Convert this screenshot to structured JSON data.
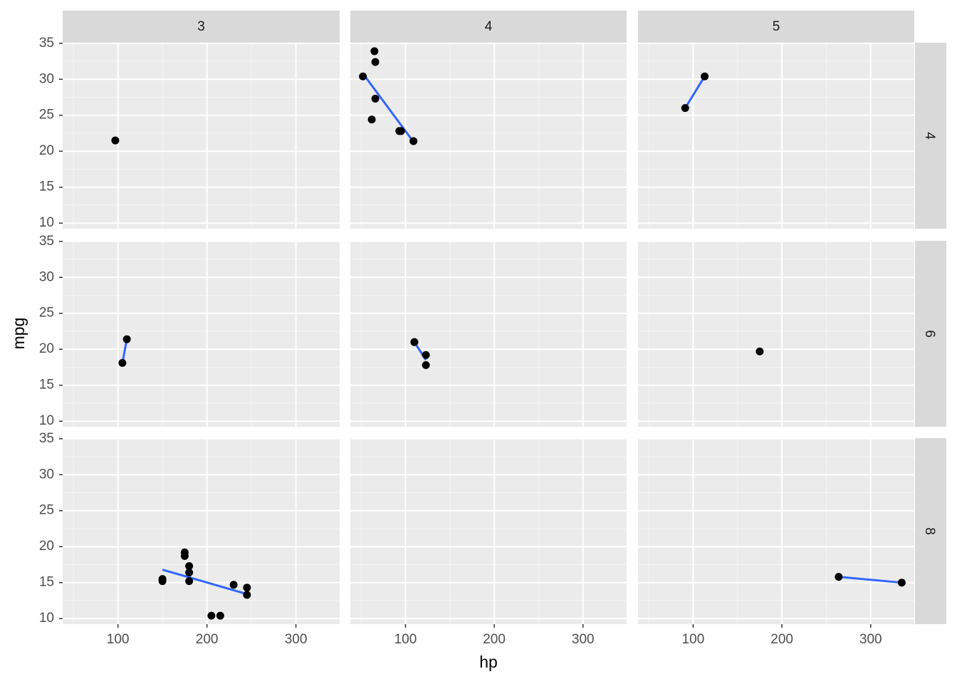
{
  "chart_data": {
    "type": "scatter",
    "x_label": "hp",
    "y_label": "mpg",
    "col_labels": [
      "3",
      "4",
      "5"
    ],
    "row_labels": [
      "4",
      "6",
      "8"
    ],
    "xlim": [
      37.85,
      349.15
    ],
    "ylim": [
      9.225,
      35.075
    ],
    "xticks": [
      100,
      200,
      300
    ],
    "yticks": [
      10,
      15,
      20,
      25,
      30,
      35
    ],
    "minor_xticks": [
      50,
      150,
      250
    ],
    "minor_yticks": [
      12.5,
      17.5,
      22.5,
      27.5,
      32.5
    ],
    "grid": true,
    "point_color": "#000000",
    "fit_color": "#3366ff",
    "panels": [
      {
        "x": [
          97
        ],
        "y": [
          21.5
        ],
        "fit_x": [],
        "fit_y": []
      },
      {
        "x": [
          93,
          62,
          95,
          66,
          52,
          65,
          66,
          109
        ],
        "y": [
          22.8,
          24.4,
          22.8,
          32.4,
          30.4,
          33.9,
          27.3,
          21.4
        ],
        "fit_x": [
          52,
          109
        ],
        "fit_y": [
          30.8,
          21.3
        ]
      },
      {
        "x": [
          91,
          113
        ],
        "y": [
          26.0,
          30.4
        ],
        "fit_x": [
          91,
          113
        ],
        "fit_y": [
          26.0,
          30.4
        ]
      },
      {
        "x": [
          110,
          105
        ],
        "y": [
          21.4,
          18.1
        ],
        "fit_x": [
          105,
          110
        ],
        "fit_y": [
          18.1,
          21.4
        ]
      },
      {
        "x": [
          110,
          110,
          123,
          123
        ],
        "y": [
          21.0,
          21.0,
          19.2,
          17.8
        ],
        "fit_x": [
          110,
          123
        ],
        "fit_y": [
          21.0,
          18.5
        ]
      },
      {
        "x": [
          175
        ],
        "y": [
          19.7
        ],
        "fit_x": [],
        "fit_y": []
      },
      {
        "x": [
          175,
          245,
          180,
          180,
          180,
          205,
          215,
          230,
          150,
          150,
          245,
          175
        ],
        "y": [
          18.7,
          14.3,
          16.4,
          17.3,
          15.2,
          10.4,
          10.4,
          14.7,
          15.5,
          15.2,
          13.3,
          19.2
        ],
        "fit_x": [
          150,
          245
        ],
        "fit_y": [
          16.8,
          13.4
        ]
      },
      {
        "x": [],
        "y": [],
        "fit_x": [],
        "fit_y": []
      },
      {
        "x": [
          264,
          335
        ],
        "y": [
          15.8,
          15.0
        ],
        "fit_x": [
          264,
          335
        ],
        "fit_y": [
          15.8,
          15.0
        ]
      }
    ]
  }
}
